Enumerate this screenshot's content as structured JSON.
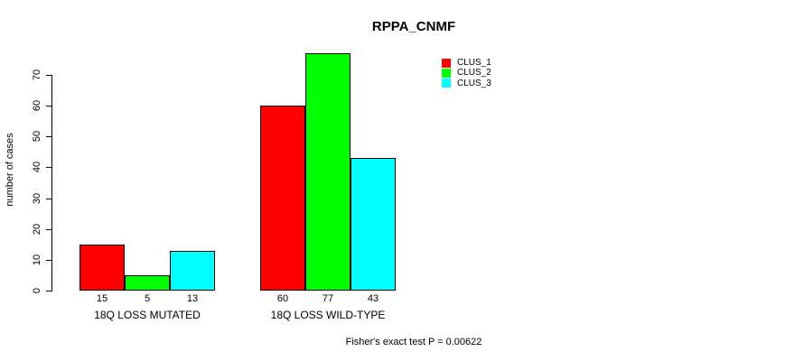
{
  "chart_data": {
    "type": "bar",
    "title": "RPPA_CNMF",
    "xlabel": "",
    "ylabel": "number of cases",
    "ylim": [
      0,
      70
    ],
    "yticks": [
      0,
      10,
      20,
      30,
      40,
      50,
      60,
      70
    ],
    "grid": false,
    "legend_position": "top-right",
    "categories": [
      "18Q LOSS MUTATED",
      "18Q LOSS WILD-TYPE"
    ],
    "series": [
      {
        "name": "CLUS_1",
        "color": "#ff0000",
        "values": [
          15,
          60
        ]
      },
      {
        "name": "CLUS_2",
        "color": "#00ff00",
        "values": [
          5,
          77
        ]
      },
      {
        "name": "CLUS_3",
        "color": "#00ffff",
        "values": [
          13,
          43
        ]
      }
    ],
    "annotation": "Fisher's exact test P = 0.00622"
  }
}
